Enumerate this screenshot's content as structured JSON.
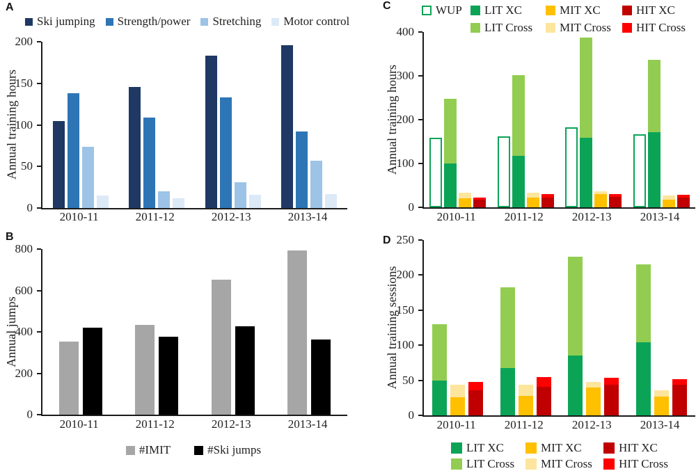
{
  "chart_data": [
    {
      "id": "A",
      "label": "A",
      "type": "bar",
      "ylabel": "Annual training hours",
      "ymax": 200,
      "yticks": [
        0,
        50,
        100,
        150,
        200
      ],
      "categories": [
        "2010-11",
        "2011-12",
        "2012-13",
        "2013-14"
      ],
      "bars": [
        {
          "segments": [
            {
              "name": "Ski jumping",
              "color": "#1f3864",
              "values": [
                105,
                146,
                183,
                196
              ]
            }
          ]
        },
        {
          "segments": [
            {
              "name": "Strength/power",
              "color": "#2e75b6",
              "values": [
                138,
                109,
                133,
                92
              ]
            }
          ]
        },
        {
          "segments": [
            {
              "name": "Stretching",
              "color": "#9dc3e6",
              "values": [
                74,
                20,
                31,
                57
              ]
            }
          ]
        },
        {
          "segments": [
            {
              "name": "Motor control",
              "color": "#dce9f7",
              "values": [
                15,
                12,
                16,
                17
              ]
            }
          ]
        }
      ],
      "legend": {
        "position": "top",
        "rows": [
          [
            {
              "label": "Ski jumping",
              "color": "#1f3864"
            },
            {
              "label": "Strength/power",
              "color": "#2e75b6"
            },
            {
              "label": "Stretching",
              "color": "#9dc3e6"
            },
            {
              "label": "Motor control",
              "color": "#dce9f7"
            }
          ]
        ]
      }
    },
    {
      "id": "B",
      "label": "B",
      "type": "bar",
      "ylabel": "Annual jumps",
      "ymax": 800,
      "yticks": [
        0,
        200,
        400,
        600,
        800
      ],
      "categories": [
        "2010-11",
        "2011-12",
        "2012-13",
        "2013-14"
      ],
      "bars": [
        {
          "segments": [
            {
              "name": "#IMIT",
              "color": "#a6a6a6",
              "values": [
                353,
                432,
                652,
                795
              ]
            }
          ]
        },
        {
          "segments": [
            {
              "name": "#Ski jumps",
              "color": "#000000",
              "values": [
                420,
                378,
                427,
                363
              ]
            }
          ]
        }
      ],
      "legend": {
        "position": "bottom",
        "rows": [
          [
            {
              "label": "#IMIT",
              "color": "#a6a6a6"
            },
            {
              "label": "#Ski jumps",
              "color": "#000000"
            }
          ]
        ]
      }
    },
    {
      "id": "C",
      "label": "C",
      "type": "stacked-bar",
      "ylabel": "Annual training hours",
      "ymax": 400,
      "yticks": [
        0,
        100,
        200,
        300,
        400
      ],
      "categories": [
        "2010-11",
        "2011-12",
        "2012-13",
        "2013-14"
      ],
      "bars": [
        {
          "outline": true,
          "segments": [
            {
              "name": "WUP",
              "color": "#0ba457",
              "values": [
                158,
                162,
                183,
                167
              ]
            }
          ]
        },
        {
          "segments": [
            {
              "name": "LIT XC",
              "color": "#0ba457",
              "values": [
                100,
                117,
                158,
                172
              ]
            },
            {
              "name": "LIT Cross",
              "color": "#92cd52",
              "values": [
                147,
                185,
                230,
                165
              ]
            }
          ]
        },
        {
          "segments": [
            {
              "name": "MIT XC",
              "color": "#ffc000",
              "values": [
                21,
                22,
                30,
                18
              ]
            },
            {
              "name": "MIT Cross",
              "color": "#fde59d",
              "values": [
                12,
                11,
                6,
                9
              ]
            }
          ]
        },
        {
          "segments": [
            {
              "name": "HIT XC",
              "color": "#c00000",
              "values": [
                18,
                23,
                24,
                22
              ]
            },
            {
              "name": "HIT Cross",
              "color": "#fe0000",
              "values": [
                5,
                7,
                6,
                6
              ]
            }
          ]
        }
      ],
      "legend": {
        "position": "top",
        "rows": [
          [
            {
              "label": "WUP",
              "color": "#0ba457",
              "outline": true
            },
            {
              "label": "LIT XC",
              "color": "#0ba457"
            },
            {
              "label": "MIT XC",
              "color": "#ffc000"
            },
            {
              "label": "HIT XC",
              "color": "#c00000"
            }
          ],
          [
            null,
            {
              "label": "LIT Cross",
              "color": "#92cd52"
            },
            {
              "label": "MIT Cross",
              "color": "#fde59d"
            },
            {
              "label": "HIT Cross",
              "color": "#fe0000"
            }
          ]
        ]
      }
    },
    {
      "id": "D",
      "label": "D",
      "type": "stacked-bar",
      "ylabel": "Annual training sessions",
      "ymax": 250,
      "yticks": [
        0,
        50,
        100,
        150,
        200,
        250
      ],
      "categories": [
        "2010-11",
        "2011-12",
        "2012-13",
        "2013-14"
      ],
      "bars": [
        {
          "segments": [
            {
              "name": "LIT XC",
              "color": "#0ba457",
              "values": [
                50,
                67,
                85,
                104
              ]
            },
            {
              "name": "LIT Cross",
              "color": "#92cd52",
              "values": [
                80,
                116,
                141,
                111
              ]
            }
          ]
        },
        {
          "segments": [
            {
              "name": "MIT XC",
              "color": "#ffc000",
              "values": [
                26,
                28,
                40,
                27
              ]
            },
            {
              "name": "MIT Cross",
              "color": "#fde59d",
              "values": [
                18,
                16,
                8,
                9
              ]
            }
          ]
        },
        {
          "segments": [
            {
              "name": "HIT XC",
              "color": "#c00000",
              "values": [
                36,
                41,
                44,
                44
              ]
            },
            {
              "name": "HIT Cross",
              "color": "#fe0000",
              "values": [
                12,
                14,
                10,
                8
              ]
            }
          ]
        }
      ],
      "legend": {
        "position": "bottom",
        "rows": [
          [
            {
              "label": "LIT XC",
              "color": "#0ba457"
            },
            {
              "label": "MIT XC",
              "color": "#ffc000"
            },
            {
              "label": "HIT XC",
              "color": "#c00000"
            }
          ],
          [
            {
              "label": "LIT Cross",
              "color": "#92cd52"
            },
            {
              "label": "MIT Cross",
              "color": "#fde59d"
            },
            {
              "label": "HIT Cross",
              "color": "#fe0000"
            }
          ]
        ]
      }
    }
  ]
}
